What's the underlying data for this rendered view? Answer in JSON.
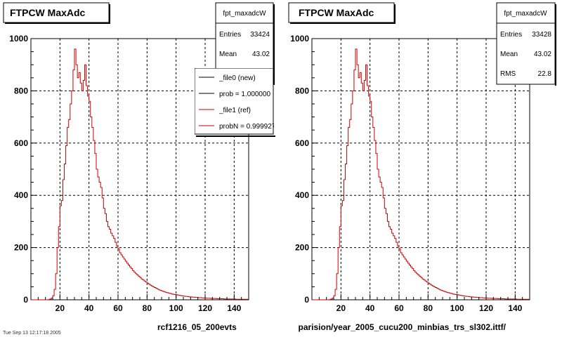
{
  "footer": {
    "left_label": "rcf1216_05_200evts",
    "right_label": "parision/year_2005_cucu200_minbias_trs_sl302.ittf/",
    "corner_text": "Tue Sep 13 12:17:18 2005"
  },
  "colors": {
    "ref_line": "#cc0000",
    "new_line": "#000000",
    "grid": "#000000"
  },
  "chart_data": [
    {
      "type": "histogram",
      "title": "FTPCW MaxAdc",
      "xlim": [
        0,
        150
      ],
      "ylim": [
        0,
        1000
      ],
      "x_ticks": [
        20,
        40,
        60,
        80,
        100,
        120,
        140
      ],
      "y_ticks": [
        0,
        200,
        400,
        600,
        800,
        1000
      ],
      "grid": true,
      "stats": {
        "name": "fpt_maxadcW",
        "rows": [
          {
            "label": "Entries",
            "value": "33424"
          },
          {
            "label": "Mean",
            "value": "43.02"
          }
        ]
      },
      "legend": {
        "placement": "top-right",
        "entries": [
          {
            "label": "_file0 (new)",
            "color": "#000000"
          },
          {
            "label": "prob = 1.000000",
            "color": "#000000"
          },
          {
            "label": "_file1 (ref)",
            "color": "#cc0000"
          },
          {
            "label": "probN = 0.999927",
            "color": "#cc0000"
          }
        ]
      },
      "series": [
        {
          "bin_width": 1,
          "x_start": 0,
          "values": [
            0,
            0,
            0,
            0,
            0,
            0,
            0,
            0,
            0,
            0,
            0,
            0,
            1,
            3,
            6,
            15,
            40,
            100,
            200,
            280,
            360,
            380,
            460,
            520,
            590,
            660,
            690,
            750,
            800,
            880,
            960,
            900,
            850,
            870,
            830,
            800,
            840,
            900,
            820,
            780,
            760,
            700,
            660,
            610,
            560,
            500,
            470,
            450,
            430,
            390,
            350,
            330,
            300,
            280,
            270,
            255,
            245,
            235,
            220,
            205,
            195,
            180,
            172,
            164,
            156,
            148,
            140,
            133,
            126,
            120,
            112,
            106,
            100,
            95,
            90,
            85,
            80,
            76,
            72,
            68,
            64,
            60,
            56,
            53,
            50,
            47,
            44,
            41,
            38,
            36,
            34,
            32,
            30,
            28,
            27,
            25,
            24,
            22,
            21,
            20,
            19,
            18,
            17,
            16,
            15,
            14,
            13,
            13,
            12,
            11,
            11,
            10,
            10,
            9,
            9,
            8,
            8,
            8,
            7,
            7,
            7,
            6,
            6,
            6,
            5,
            5,
            5,
            5,
            4,
            4,
            4,
            4,
            4,
            3,
            3,
            3,
            3,
            3,
            3,
            3,
            3,
            2,
            2,
            2,
            2,
            2,
            2,
            2,
            2,
            2
          ]
        }
      ]
    },
    {
      "type": "histogram",
      "title": "FTPCW MaxAdc",
      "xlim": [
        0,
        150
      ],
      "ylim": [
        0,
        1000
      ],
      "x_ticks": [
        20,
        40,
        60,
        80,
        100,
        120,
        140
      ],
      "y_ticks": [
        0,
        200,
        400,
        600,
        800,
        1000
      ],
      "grid": true,
      "stats": {
        "name": "fpt_maxadcW",
        "rows": [
          {
            "label": "Entries",
            "value": "33428"
          },
          {
            "label": "Mean",
            "value": "43.02"
          },
          {
            "label": "RMS",
            "value": "22.8"
          }
        ]
      },
      "series": [
        {
          "bin_width": 1,
          "x_start": 0,
          "values": [
            0,
            0,
            0,
            0,
            0,
            0,
            0,
            0,
            0,
            0,
            0,
            0,
            1,
            3,
            6,
            15,
            40,
            100,
            200,
            280,
            360,
            380,
            460,
            520,
            590,
            660,
            690,
            750,
            800,
            880,
            960,
            900,
            850,
            870,
            830,
            800,
            840,
            900,
            820,
            780,
            760,
            700,
            660,
            610,
            560,
            500,
            470,
            450,
            430,
            390,
            350,
            330,
            300,
            280,
            270,
            255,
            245,
            235,
            220,
            205,
            195,
            180,
            172,
            164,
            156,
            148,
            140,
            133,
            126,
            120,
            112,
            106,
            100,
            95,
            90,
            85,
            80,
            76,
            72,
            68,
            64,
            60,
            56,
            53,
            50,
            47,
            44,
            41,
            38,
            36,
            34,
            32,
            30,
            28,
            27,
            25,
            24,
            22,
            21,
            20,
            19,
            18,
            17,
            16,
            15,
            14,
            13,
            13,
            12,
            11,
            11,
            10,
            10,
            9,
            9,
            8,
            8,
            8,
            7,
            7,
            7,
            6,
            6,
            6,
            5,
            5,
            5,
            5,
            4,
            4,
            4,
            4,
            4,
            3,
            3,
            3,
            3,
            3,
            3,
            3,
            3,
            2,
            2,
            2,
            2,
            2,
            2,
            2,
            2,
            2
          ]
        }
      ]
    }
  ]
}
